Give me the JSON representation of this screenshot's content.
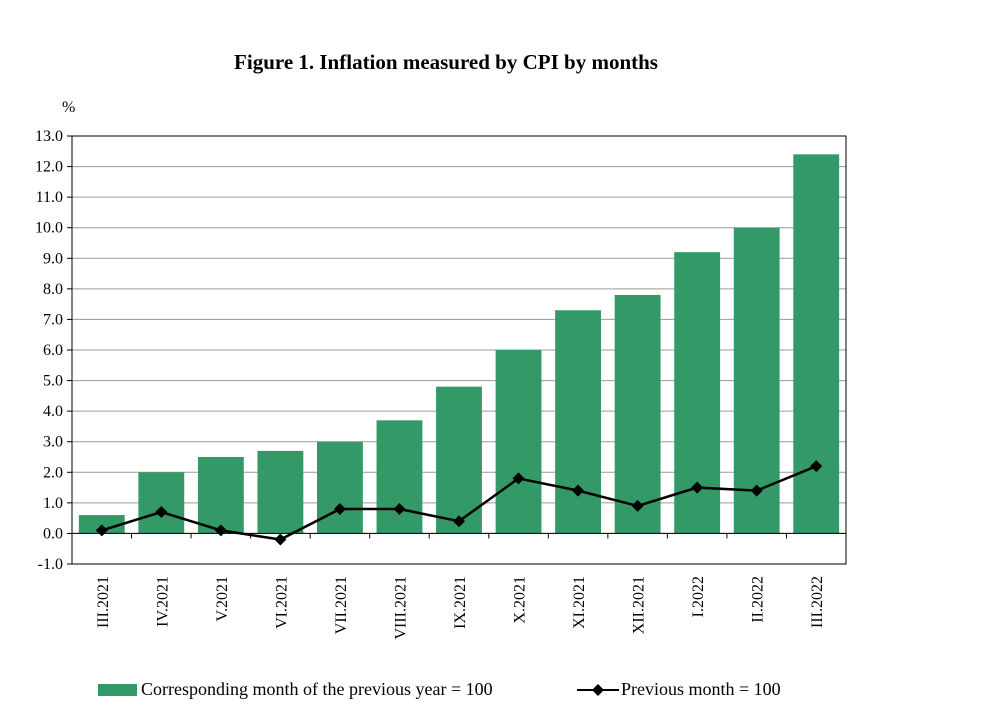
{
  "chart_data": {
    "type": "bar",
    "title": "Figure 1. Inflation measured by CPI by months",
    "ylabel": "%",
    "xlabel": "",
    "ylim": [
      -1,
      13
    ],
    "ytick_step": 1,
    "categories": [
      "III.2021",
      "IV.2021",
      "V.2021",
      "VI.2021",
      "VII.2021",
      "VIII.2021",
      "IX.2021",
      "X.2021",
      "XI.2021",
      "XII.2021",
      "I.2022",
      "II.2022",
      "III.2022"
    ],
    "series": [
      {
        "name": "Corresponding month of the previous year = 100",
        "kind": "bar",
        "color": "#339966",
        "values": [
          0.6,
          2.0,
          2.5,
          2.7,
          3.0,
          3.7,
          4.8,
          6.0,
          7.3,
          7.8,
          9.2,
          10.0,
          12.4
        ]
      },
      {
        "name": "Previous month = 100",
        "kind": "line",
        "marker": "diamond",
        "color": "#000000",
        "values": [
          0.1,
          0.7,
          0.1,
          -0.2,
          0.8,
          0.8,
          0.4,
          1.8,
          1.4,
          0.9,
          1.5,
          1.4,
          2.2
        ]
      }
    ],
    "grid": true,
    "legend_position": "bottom"
  }
}
